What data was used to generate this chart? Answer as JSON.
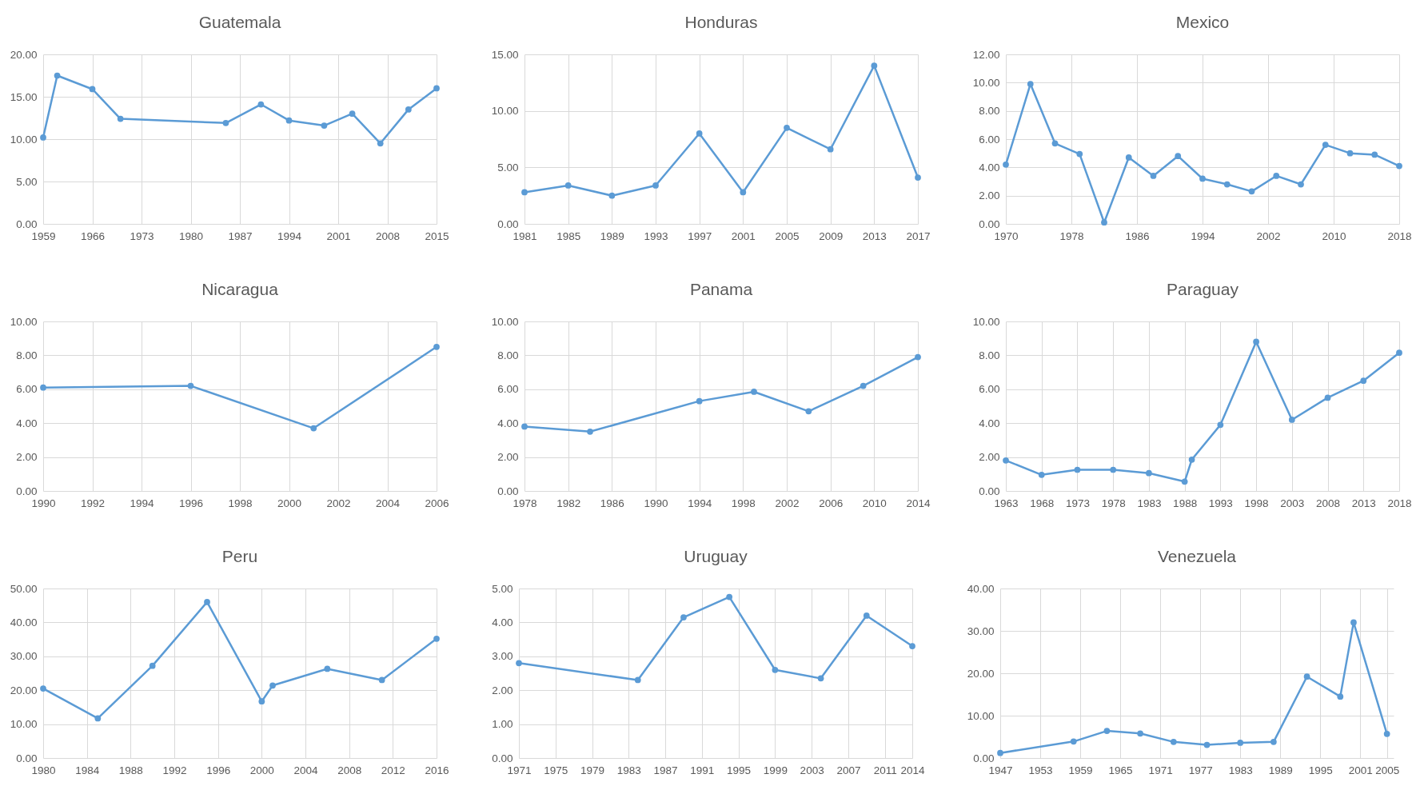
{
  "chart_data": [
    {
      "type": "line",
      "title": "Guatemala",
      "color": "#5b9bd5",
      "marker": "circle",
      "grid": true,
      "x": [
        1959,
        1961,
        1966,
        1970,
        1985,
        1990,
        1994,
        1999,
        2003,
        2007,
        2011,
        2015
      ],
      "values": [
        10.2,
        17.5,
        15.9,
        12.4,
        11.9,
        14.1,
        12.2,
        11.6,
        13.0,
        9.5,
        13.5,
        16.0
      ],
      "xlim": [
        1959,
        2015
      ],
      "xticks": [
        1959,
        1966,
        1973,
        1980,
        1987,
        1994,
        2001,
        2008,
        2015
      ],
      "ylim": [
        0,
        20
      ],
      "yticks": [
        {
          "value": 0,
          "label": "0.00"
        },
        {
          "value": 5,
          "label": "5.00"
        },
        {
          "value": 10,
          "label": "10.00"
        },
        {
          "value": 15,
          "label": "15.00"
        },
        {
          "value": 20,
          "label": "20.00"
        }
      ]
    },
    {
      "type": "line",
      "title": "Honduras",
      "color": "#5b9bd5",
      "marker": "circle",
      "grid": true,
      "x": [
        1981,
        1985,
        1989,
        1993,
        1997,
        2001,
        2005,
        2009,
        2013,
        2017
      ],
      "values": [
        2.8,
        3.4,
        2.5,
        3.4,
        8.0,
        2.8,
        8.5,
        6.6,
        14.0,
        4.1
      ],
      "xlim": [
        1981,
        2017
      ],
      "xticks": [
        1981,
        1985,
        1989,
        1993,
        1997,
        2001,
        2005,
        2009,
        2013,
        2017
      ],
      "ylim": [
        0,
        15
      ],
      "yticks": [
        {
          "value": 0,
          "label": "0.00"
        },
        {
          "value": 5,
          "label": "5.00"
        },
        {
          "value": 10,
          "label": "10.00"
        },
        {
          "value": 15,
          "label": "15.00"
        }
      ]
    },
    {
      "type": "line",
      "title": "Mexico",
      "color": "#5b9bd5",
      "marker": "circle",
      "grid": true,
      "x": [
        1970,
        1973,
        1976,
        1979,
        1982,
        1985,
        1988,
        1991,
        1994,
        1997,
        2000,
        2003,
        2006,
        2009,
        2012,
        2015,
        2018
      ],
      "values": [
        4.2,
        9.9,
        5.7,
        4.95,
        0.1,
        4.7,
        3.4,
        4.8,
        3.2,
        2.8,
        2.3,
        3.4,
        2.8,
        5.6,
        5.0,
        4.9,
        4.1
      ],
      "xlim": [
        1970,
        2018
      ],
      "xticks": [
        1970,
        1978,
        1986,
        1994,
        2002,
        2010,
        2018
      ],
      "ylim": [
        0,
        12
      ],
      "yticks": [
        {
          "value": 0,
          "label": "0.00"
        },
        {
          "value": 2,
          "label": "2.00"
        },
        {
          "value": 4,
          "label": "4.00"
        },
        {
          "value": 6,
          "label": "6.00"
        },
        {
          "value": 8,
          "label": "8.00"
        },
        {
          "value": 10,
          "label": "10.00"
        },
        {
          "value": 12,
          "label": "12.00"
        }
      ]
    },
    {
      "type": "line",
      "title": "Nicaragua",
      "color": "#5b9bd5",
      "marker": "circle",
      "grid": true,
      "x": [
        1990,
        1996,
        2001,
        2006
      ],
      "values": [
        6.1,
        6.2,
        3.7,
        8.5
      ],
      "xlim": [
        1990,
        2006
      ],
      "xticks": [
        1990,
        1992,
        1994,
        1996,
        1998,
        2000,
        2002,
        2004,
        2006
      ],
      "ylim": [
        0,
        10
      ],
      "yticks": [
        {
          "value": 0,
          "label": "0.00"
        },
        {
          "value": 2,
          "label": "2.00"
        },
        {
          "value": 4,
          "label": "4.00"
        },
        {
          "value": 6,
          "label": "6.00"
        },
        {
          "value": 8,
          "label": "8.00"
        },
        {
          "value": 10,
          "label": "10.00"
        }
      ]
    },
    {
      "type": "line",
      "title": "Panama",
      "color": "#5b9bd5",
      "marker": "circle",
      "grid": true,
      "x": [
        1978,
        1984,
        1994,
        1999,
        2004,
        2009,
        2014
      ],
      "values": [
        3.8,
        3.5,
        5.3,
        5.85,
        4.7,
        6.2,
        7.9
      ],
      "xlim": [
        1978,
        2014
      ],
      "xticks": [
        1978,
        1982,
        1986,
        1990,
        1994,
        1998,
        2002,
        2006,
        2010,
        2014
      ],
      "ylim": [
        0,
        10
      ],
      "yticks": [
        {
          "value": 0,
          "label": "0.00"
        },
        {
          "value": 2,
          "label": "2.00"
        },
        {
          "value": 4,
          "label": "4.00"
        },
        {
          "value": 6,
          "label": "6.00"
        },
        {
          "value": 8,
          "label": "8.00"
        },
        {
          "value": 10,
          "label": "10.00"
        }
      ]
    },
    {
      "type": "line",
      "title": "Paraguay",
      "color": "#5b9bd5",
      "marker": "circle",
      "grid": true,
      "x": [
        1963,
        1968,
        1973,
        1978,
        1983,
        1988,
        1989,
        1993,
        1998,
        2003,
        2008,
        2013,
        2018
      ],
      "values": [
        1.8,
        0.95,
        1.25,
        1.25,
        1.05,
        0.55,
        1.85,
        3.9,
        8.8,
        4.2,
        5.5,
        6.5,
        8.15
      ],
      "xlim": [
        1963,
        2018
      ],
      "xticks": [
        1963,
        1968,
        1973,
        1978,
        1983,
        1988,
        1993,
        1998,
        2003,
        2008,
        2013,
        2018
      ],
      "ylim": [
        0,
        10
      ],
      "yticks": [
        {
          "value": 0,
          "label": "0.00"
        },
        {
          "value": 2,
          "label": "2.00"
        },
        {
          "value": 4,
          "label": "4.00"
        },
        {
          "value": 6,
          "label": "6.00"
        },
        {
          "value": 8,
          "label": "8.00"
        },
        {
          "value": 10,
          "label": "10.00"
        }
      ]
    },
    {
      "type": "line",
      "title": "Peru",
      "color": "#5b9bd5",
      "marker": "circle",
      "grid": true,
      "x": [
        1980,
        1985,
        1990,
        1995,
        2000,
        2001,
        2006,
        2011,
        2016
      ],
      "values": [
        20.5,
        11.7,
        27.2,
        46.0,
        16.7,
        21.4,
        26.3,
        23.0,
        35.2
      ],
      "xlim": [
        1980,
        2016
      ],
      "xticks": [
        1980,
        1984,
        1988,
        1992,
        1996,
        2000,
        2004,
        2008,
        2012,
        2016
      ],
      "ylim": [
        0,
        50
      ],
      "yticks": [
        {
          "value": 0,
          "label": "0.00"
        },
        {
          "value": 10,
          "label": "10.00"
        },
        {
          "value": 20,
          "label": "20.00"
        },
        {
          "value": 30,
          "label": "30.00"
        },
        {
          "value": 40,
          "label": "40.00"
        },
        {
          "value": 50,
          "label": "50.00"
        }
      ]
    },
    {
      "type": "line",
      "title": "Uruguay",
      "color": "#5b9bd5",
      "marker": "circle",
      "grid": true,
      "x": [
        1971,
        1984,
        1989,
        1994,
        1999,
        2004,
        2009,
        2014
      ],
      "values": [
        2.8,
        2.3,
        4.15,
        4.75,
        2.6,
        2.35,
        4.2,
        3.3
      ],
      "xlim": [
        1971,
        2014
      ],
      "xticks": [
        1971,
        1975,
        1979,
        1983,
        1987,
        1991,
        1995,
        1999,
        2003,
        2007,
        2011,
        2014
      ],
      "ylim": [
        0,
        5
      ],
      "yticks": [
        {
          "value": 0,
          "label": "0.00"
        },
        {
          "value": 1,
          "label": "1.00"
        },
        {
          "value": 2,
          "label": "2.00"
        },
        {
          "value": 3,
          "label": "3.00"
        },
        {
          "value": 4,
          "label": "4.00"
        },
        {
          "value": 5,
          "label": "5.00"
        }
      ]
    },
    {
      "type": "line",
      "title": "Venezuela",
      "color": "#5b9bd5",
      "marker": "circle",
      "grid": true,
      "x": [
        1947,
        1958,
        1963,
        1968,
        1973,
        1978,
        1983,
        1988,
        1993,
        1998,
        2000,
        2005
      ],
      "values": [
        1.2,
        3.9,
        6.4,
        5.8,
        3.8,
        3.1,
        3.6,
        3.8,
        19.2,
        14.5,
        32.0,
        5.7
      ],
      "xlim": [
        1947,
        2006
      ],
      "xticks": [
        1947,
        1953,
        1959,
        1965,
        1971,
        1977,
        1983,
        1989,
        1995,
        2001,
        2005
      ],
      "ylim": [
        0,
        40
      ],
      "yticks": [
        {
          "value": 0,
          "label": "0.00"
        },
        {
          "value": 10,
          "label": "10.00"
        },
        {
          "value": 20,
          "label": "20.00"
        },
        {
          "value": 30,
          "label": "30.00"
        },
        {
          "value": 40,
          "label": "40.00"
        }
      ]
    }
  ]
}
